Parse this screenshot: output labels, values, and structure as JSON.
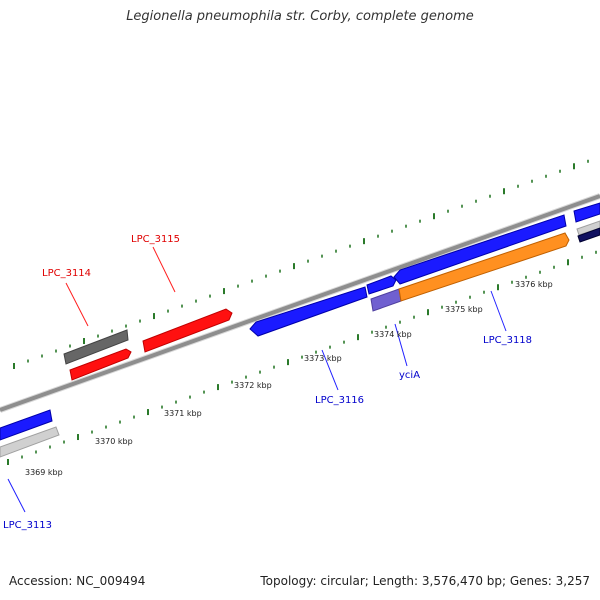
{
  "title": "Legionella pneumophila str. Corby, complete genome",
  "footer": {
    "accession": "Accession: NC_009494",
    "summary": "Topology: circular; Length: 3,576,470 bp; Genes: 3,257"
  },
  "colors": {
    "forward_gene": "#1a1aff",
    "reverse_gene": "#ff1a1a",
    "pseudogene_gray": "#6e6e6e",
    "light_gray": "#d0d0d0",
    "navy": "#101060",
    "orange": "#ff9020",
    "purple": "#7060d0",
    "backbone": "#909090",
    "tick_green": "#2a7a2a"
  },
  "tick_labels": [
    "3369 kbp",
    "3370 kbp",
    "3371 kbp",
    "3372 kbp",
    "3373 kbp",
    "3374 kbp",
    "3375 kbp",
    "3376 kbp"
  ],
  "gene_labels": {
    "red": [
      "LPC_3114",
      "LPC_3115"
    ],
    "blue": [
      "LPC_3113",
      "LPC_3116",
      "yciA",
      "LPC_3118"
    ]
  }
}
